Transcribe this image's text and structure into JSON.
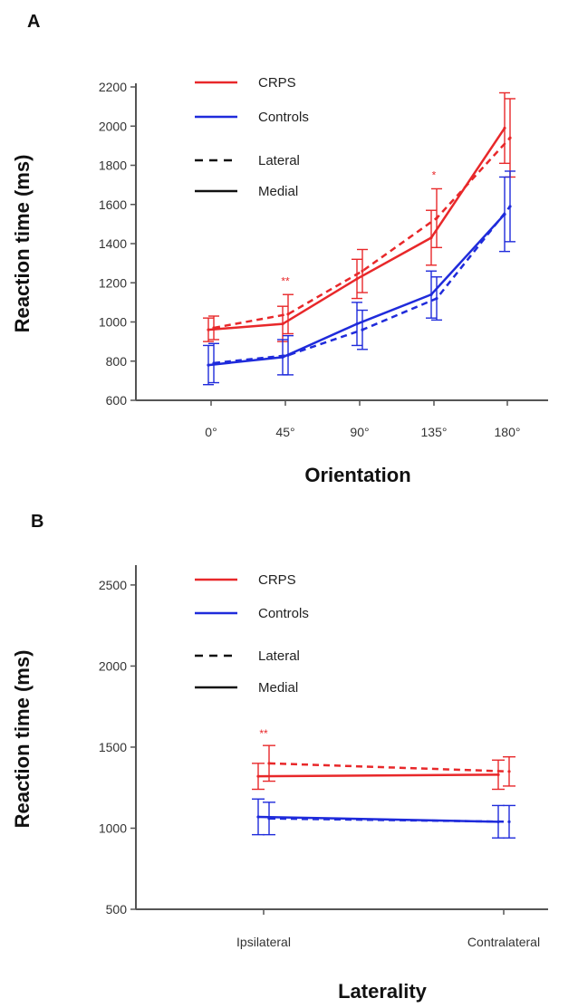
{
  "colors": {
    "CRPS": "#e8282a",
    "Controls": "#1f2bdb",
    "style_key": "#111111"
  },
  "chart_data": [
    {
      "panel": "A",
      "type": "line",
      "xlabel": "Orientation",
      "ylabel": "Reaction time (ms)",
      "categories": [
        "0°",
        "45°",
        "90°",
        "135°",
        "180°"
      ],
      "ylim": [
        600,
        2200
      ],
      "yticks": [
        600,
        800,
        1000,
        1200,
        1400,
        1600,
        1800,
        2000,
        2200
      ],
      "legend": {
        "position": "top-left",
        "entries": [
          "CRPS",
          "Controls",
          "Lateral",
          "Medial"
        ]
      },
      "series": [
        {
          "name": "CRPS",
          "style": "Medial",
          "color": "CRPS",
          "values": [
            960,
            990,
            1220,
            1430,
            1990
          ],
          "err": [
            60,
            90,
            100,
            140,
            180
          ]
        },
        {
          "name": "CRPS",
          "style": "Lateral",
          "color": "CRPS",
          "values": [
            970,
            1040,
            1260,
            1530,
            1940
          ],
          "err": [
            60,
            100,
            110,
            150,
            200
          ]
        },
        {
          "name": "Controls",
          "style": "Medial",
          "color": "Controls",
          "values": [
            780,
            820,
            990,
            1140,
            1550
          ],
          "err": [
            100,
            90,
            110,
            120,
            190
          ]
        },
        {
          "name": "Controls",
          "style": "Lateral",
          "color": "Controls",
          "values": [
            790,
            830,
            960,
            1120,
            1590
          ],
          "err": [
            100,
            100,
            100,
            110,
            180
          ]
        }
      ],
      "annotations": [
        {
          "category": "45°",
          "text": "**",
          "y": 1190
        },
        {
          "category": "135°",
          "text": "*",
          "y": 1730
        }
      ]
    },
    {
      "panel": "B",
      "type": "line",
      "xlabel": "Laterality",
      "ylabel": "Reaction time (ms)",
      "categories": [
        "Ipsilateral",
        "Contralateral"
      ],
      "ylim": [
        500,
        2600
      ],
      "yticks": [
        500,
        1000,
        1500,
        2000,
        2500
      ],
      "legend": {
        "position": "top-left",
        "entries": [
          "CRPS",
          "Controls",
          "Lateral",
          "Medial"
        ]
      },
      "series": [
        {
          "name": "CRPS",
          "style": "Medial",
          "color": "CRPS",
          "values": [
            1320,
            1330
          ],
          "err": [
            80,
            90
          ]
        },
        {
          "name": "CRPS",
          "style": "Lateral",
          "color": "CRPS",
          "values": [
            1400,
            1350
          ],
          "err": [
            110,
            90
          ]
        },
        {
          "name": "Controls",
          "style": "Medial",
          "color": "Controls",
          "values": [
            1070,
            1040
          ],
          "err": [
            110,
            100
          ]
        },
        {
          "name": "Controls",
          "style": "Lateral",
          "color": "Controls",
          "values": [
            1060,
            1040
          ],
          "err": [
            100,
            100
          ]
        }
      ],
      "annotations": [
        {
          "category": "Ipsilateral",
          "text": "**",
          "y": 1560
        }
      ]
    }
  ]
}
